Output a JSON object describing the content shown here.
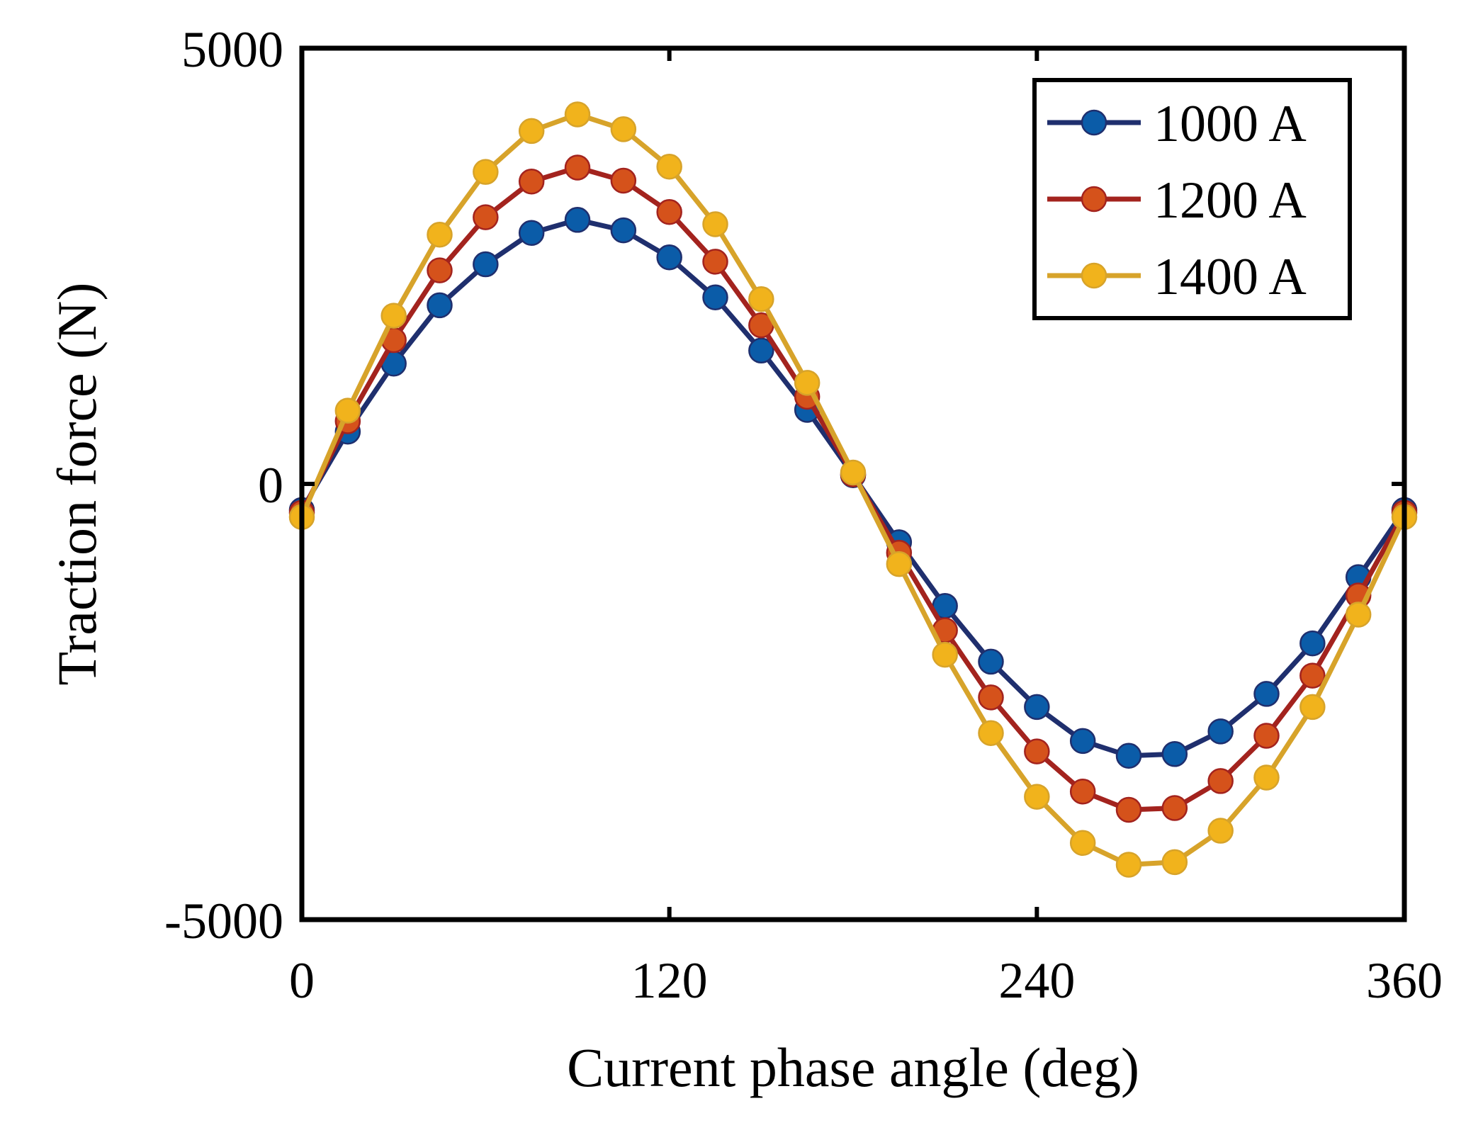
{
  "chart_data": {
    "type": "line",
    "title": "",
    "xlabel": "Current phase angle (deg)",
    "ylabel": "Traction force (N)",
    "xlim": [
      0,
      360
    ],
    "ylim": [
      -5000,
      5000
    ],
    "xticks": [
      0,
      120,
      240,
      360
    ],
    "xtick_labels": [
      "0",
      "120",
      "240",
      "360"
    ],
    "yticks": [
      -5000,
      0,
      5000
    ],
    "ytick_labels": [
      "-5000",
      "0",
      "5000"
    ],
    "grid": false,
    "legend_position": "top-right",
    "x": [
      0,
      15,
      30,
      45,
      60,
      75,
      90,
      105,
      120,
      135,
      150,
      165,
      180,
      195,
      210,
      225,
      240,
      255,
      270,
      285,
      300,
      315,
      330,
      345,
      360
    ],
    "series": [
      {
        "name": "1000 A",
        "color": "#0B5CA8",
        "line_color": "#1F2F6E",
        "values": [
          -300,
          600,
          1380,
          2050,
          2520,
          2880,
          3030,
          2910,
          2600,
          2140,
          1530,
          850,
          100,
          -670,
          -1400,
          -2040,
          -2560,
          -2950,
          -3120,
          -3100,
          -2840,
          -2410,
          -1830,
          -1070,
          -300
        ]
      },
      {
        "name": "1200 A",
        "color": "#D5521B",
        "line_color": "#A3231E",
        "values": [
          -330,
          720,
          1650,
          2450,
          3060,
          3470,
          3630,
          3480,
          3120,
          2550,
          1820,
          1000,
          110,
          -790,
          -1680,
          -2450,
          -3070,
          -3530,
          -3740,
          -3720,
          -3410,
          -2890,
          -2200,
          -1280,
          -330
        ]
      },
      {
        "name": "1400 A",
        "color": "#F1B31C",
        "line_color": "#D7A32A",
        "values": [
          -380,
          840,
          1930,
          2860,
          3580,
          4050,
          4240,
          4070,
          3640,
          2980,
          2120,
          1160,
          130,
          -920,
          -1960,
          -2860,
          -3590,
          -4120,
          -4370,
          -4340,
          -3980,
          -3370,
          -2560,
          -1500,
          -380
        ]
      }
    ]
  }
}
